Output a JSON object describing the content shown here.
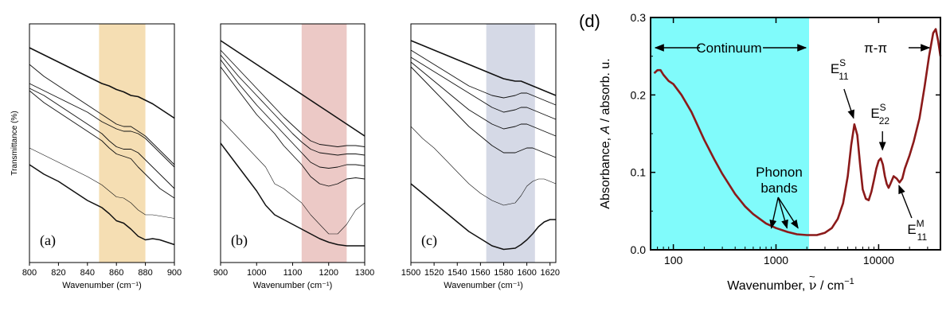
{
  "chart_data": [
    {
      "id": "a",
      "type": "line",
      "panel_label": "(a)",
      "ylabel": "Transmittance (%)",
      "xlabel": "Wavenumber (cm⁻¹)",
      "xlim": [
        800,
        900
      ],
      "x_ticks": [
        800,
        820,
        840,
        860,
        880,
        900
      ],
      "highlight": {
        "from": 848,
        "to": 880,
        "color": "#f5deb3"
      },
      "x": [
        800,
        810,
        820,
        830,
        840,
        850,
        855,
        860,
        865,
        870,
        875,
        880,
        885,
        890,
        895,
        900
      ],
      "series": [
        {
          "values": [
            0.9,
            0.87,
            0.84,
            0.81,
            0.78,
            0.75,
            0.74,
            0.725,
            0.715,
            0.7,
            0.695,
            0.68,
            0.665,
            0.645,
            0.625,
            0.605
          ]
        },
        {
          "values": [
            0.83,
            0.78,
            0.74,
            0.7,
            0.66,
            0.62,
            0.6,
            0.58,
            0.57,
            0.57,
            0.55,
            0.53,
            0.5,
            0.47,
            0.44,
            0.41
          ]
        },
        {
          "values": [
            0.75,
            0.72,
            0.69,
            0.66,
            0.63,
            0.59,
            0.575,
            0.56,
            0.55,
            0.55,
            0.54,
            0.52,
            0.49,
            0.46,
            0.43,
            0.4
          ]
        },
        {
          "values": [
            0.73,
            0.7,
            0.66,
            0.62,
            0.58,
            0.54,
            0.51,
            0.485,
            0.475,
            0.475,
            0.46,
            0.43,
            0.4,
            0.37,
            0.34,
            0.31
          ]
        },
        {
          "values": [
            0.72,
            0.67,
            0.63,
            0.59,
            0.55,
            0.51,
            0.48,
            0.455,
            0.445,
            0.435,
            0.4,
            0.37,
            0.34,
            0.31,
            0.29,
            0.27
          ]
        },
        {
          "values": [
            0.48,
            0.45,
            0.42,
            0.39,
            0.36,
            0.325,
            0.3,
            0.275,
            0.27,
            0.25,
            0.22,
            0.2,
            0.2,
            0.195,
            0.19,
            0.185
          ]
        },
        {
          "values": [
            0.41,
            0.37,
            0.34,
            0.3,
            0.26,
            0.23,
            0.205,
            0.175,
            0.165,
            0.14,
            0.11,
            0.095,
            0.1,
            0.095,
            0.085,
            0.075
          ]
        }
      ]
    },
    {
      "id": "b",
      "type": "line",
      "panel_label": "(b)",
      "xlabel": "Wavenumber (cm⁻¹)",
      "xlim": [
        900,
        1300
      ],
      "x_ticks": [
        900,
        1000,
        1100,
        1200,
        1300
      ],
      "highlight": {
        "from": 1125,
        "to": 1250,
        "color": "#ecc9c6"
      },
      "x": [
        900,
        950,
        1000,
        1025,
        1050,
        1075,
        1100,
        1125,
        1150,
        1175,
        1200,
        1225,
        1250,
        1275,
        1300
      ],
      "series": [
        {
          "values": [
            0.93,
            0.88,
            0.83,
            0.805,
            0.78,
            0.755,
            0.73,
            0.705,
            0.68,
            0.655,
            0.63,
            0.605,
            0.58,
            0.555,
            0.53
          ]
        },
        {
          "values": [
            0.89,
            0.81,
            0.73,
            0.69,
            0.65,
            0.61,
            0.575,
            0.54,
            0.51,
            0.495,
            0.49,
            0.485,
            0.49,
            0.49,
            0.485
          ]
        },
        {
          "values": [
            0.87,
            0.78,
            0.7,
            0.66,
            0.62,
            0.58,
            0.54,
            0.505,
            0.475,
            0.46,
            0.455,
            0.45,
            0.455,
            0.455,
            0.45
          ]
        },
        {
          "values": [
            0.85,
            0.75,
            0.66,
            0.62,
            0.58,
            0.54,
            0.5,
            0.46,
            0.42,
            0.4,
            0.395,
            0.4,
            0.41,
            0.41,
            0.405
          ]
        },
        {
          "values": [
            0.82,
            0.72,
            0.62,
            0.58,
            0.54,
            0.49,
            0.45,
            0.41,
            0.36,
            0.33,
            0.32,
            0.33,
            0.35,
            0.355,
            0.35
          ]
        },
        {
          "values": [
            0.6,
            0.52,
            0.44,
            0.4,
            0.33,
            0.31,
            0.28,
            0.25,
            0.2,
            0.16,
            0.12,
            0.12,
            0.16,
            0.22,
            0.25
          ]
        },
        {
          "values": [
            0.5,
            0.4,
            0.3,
            0.24,
            0.2,
            0.18,
            0.16,
            0.14,
            0.12,
            0.1,
            0.085,
            0.075,
            0.07,
            0.07,
            0.07
          ]
        }
      ]
    },
    {
      "id": "c",
      "type": "line",
      "panel_label": "(c)",
      "xlabel": "Wavenumber (cm⁻¹)",
      "xlim": [
        1500,
        1625
      ],
      "x_ticks": [
        1500,
        1520,
        1540,
        1560,
        1580,
        1600,
        1620
      ],
      "highlight": {
        "from": 1565,
        "to": 1607,
        "color": "#d5d9e6"
      },
      "x": [
        1500,
        1510,
        1520,
        1530,
        1540,
        1550,
        1560,
        1570,
        1580,
        1590,
        1595,
        1600,
        1605,
        1610,
        1615,
        1620,
        1625
      ],
      "series": [
        {
          "values": [
            0.93,
            0.91,
            0.89,
            0.87,
            0.85,
            0.83,
            0.81,
            0.79,
            0.77,
            0.76,
            0.76,
            0.75,
            0.74,
            0.73,
            0.72,
            0.71,
            0.7
          ]
        },
        {
          "values": [
            0.89,
            0.86,
            0.83,
            0.8,
            0.77,
            0.74,
            0.72,
            0.7,
            0.69,
            0.7,
            0.71,
            0.71,
            0.7,
            0.69,
            0.68,
            0.67,
            0.66
          ]
        },
        {
          "values": [
            0.86,
            0.83,
            0.8,
            0.77,
            0.74,
            0.71,
            0.68,
            0.65,
            0.63,
            0.64,
            0.65,
            0.65,
            0.64,
            0.63,
            0.62,
            0.61,
            0.6
          ]
        },
        {
          "values": [
            0.84,
            0.8,
            0.76,
            0.72,
            0.68,
            0.64,
            0.61,
            0.58,
            0.56,
            0.57,
            0.58,
            0.58,
            0.57,
            0.56,
            0.55,
            0.54,
            0.53
          ]
        },
        {
          "values": [
            0.82,
            0.77,
            0.72,
            0.67,
            0.62,
            0.57,
            0.53,
            0.49,
            0.46,
            0.46,
            0.47,
            0.48,
            0.48,
            0.47,
            0.46,
            0.45,
            0.44
          ]
        },
        {
          "values": [
            0.57,
            0.52,
            0.48,
            0.43,
            0.38,
            0.33,
            0.29,
            0.26,
            0.24,
            0.25,
            0.28,
            0.32,
            0.34,
            0.35,
            0.35,
            0.34,
            0.33
          ]
        },
        {
          "values": [
            0.33,
            0.29,
            0.25,
            0.21,
            0.17,
            0.13,
            0.1,
            0.07,
            0.055,
            0.06,
            0.075,
            0.095,
            0.12,
            0.15,
            0.17,
            0.18,
            0.18
          ]
        }
      ]
    },
    {
      "id": "d",
      "type": "line",
      "panel_label": "(d)",
      "xscale": "log",
      "xlim": [
        60,
        40000
      ],
      "ylim": [
        0.0,
        0.3
      ],
      "x_ticks": [
        100,
        1000,
        10000
      ],
      "x_tick_labels": [
        "100",
        "1000",
        "10000"
      ],
      "y_ticks": [
        0.0,
        0.1,
        0.2,
        0.3
      ],
      "y_tick_labels": [
        "0.0",
        "0.1",
        "0.2",
        "0.3"
      ],
      "ylabel_parts": {
        "pre": "Absorbance, ",
        "italic": "A",
        "post": " / absorb. u."
      },
      "xlabel_parts": {
        "pre": "Wavenumber, ",
        "nu": "ν",
        "tilde": "~",
        "post": " / cm",
        "sup": "−1"
      },
      "highlight": {
        "from": 60,
        "to": 2100,
        "color": "#80fbfb"
      },
      "line_color": "#8b1a1a",
      "annotations": {
        "continuum": "Continuum",
        "pipi": "π-π",
        "phonon_line1": "Phonon",
        "phonon_line2": "bands",
        "e11s": {
          "main": "E",
          "sup": "S",
          "sub": "11"
        },
        "e22s": {
          "main": "E",
          "sup": "S",
          "sub": "22"
        },
        "e11m": {
          "main": "E",
          "sup": "M",
          "sub": "11"
        }
      },
      "x": [
        65,
        70,
        75,
        80,
        90,
        100,
        120,
        150,
        200,
        250,
        300,
        400,
        500,
        600,
        800,
        1000,
        1300,
        1600,
        2000,
        2500,
        3000,
        3500,
        4000,
        4500,
        5000,
        5400,
        5800,
        6200,
        6600,
        7000,
        7500,
        8000,
        8500,
        9000,
        9500,
        10000,
        10500,
        11000,
        11500,
        12000,
        12500,
        13000,
        14000,
        15000,
        16000,
        17000,
        18000,
        20000,
        22000,
        25000,
        28000,
        31000,
        34000,
        36000,
        38000,
        40000
      ],
      "y": [
        0.228,
        0.232,
        0.232,
        0.226,
        0.218,
        0.214,
        0.2,
        0.178,
        0.142,
        0.117,
        0.098,
        0.072,
        0.056,
        0.046,
        0.034,
        0.028,
        0.023,
        0.02,
        0.019,
        0.019,
        0.022,
        0.028,
        0.04,
        0.06,
        0.095,
        0.135,
        0.162,
        0.148,
        0.11,
        0.078,
        0.066,
        0.064,
        0.075,
        0.09,
        0.105,
        0.115,
        0.118,
        0.11,
        0.095,
        0.085,
        0.08,
        0.085,
        0.095,
        0.092,
        0.087,
        0.092,
        0.105,
        0.122,
        0.14,
        0.17,
        0.21,
        0.25,
        0.28,
        0.285,
        0.27,
        0.25
      ]
    }
  ]
}
